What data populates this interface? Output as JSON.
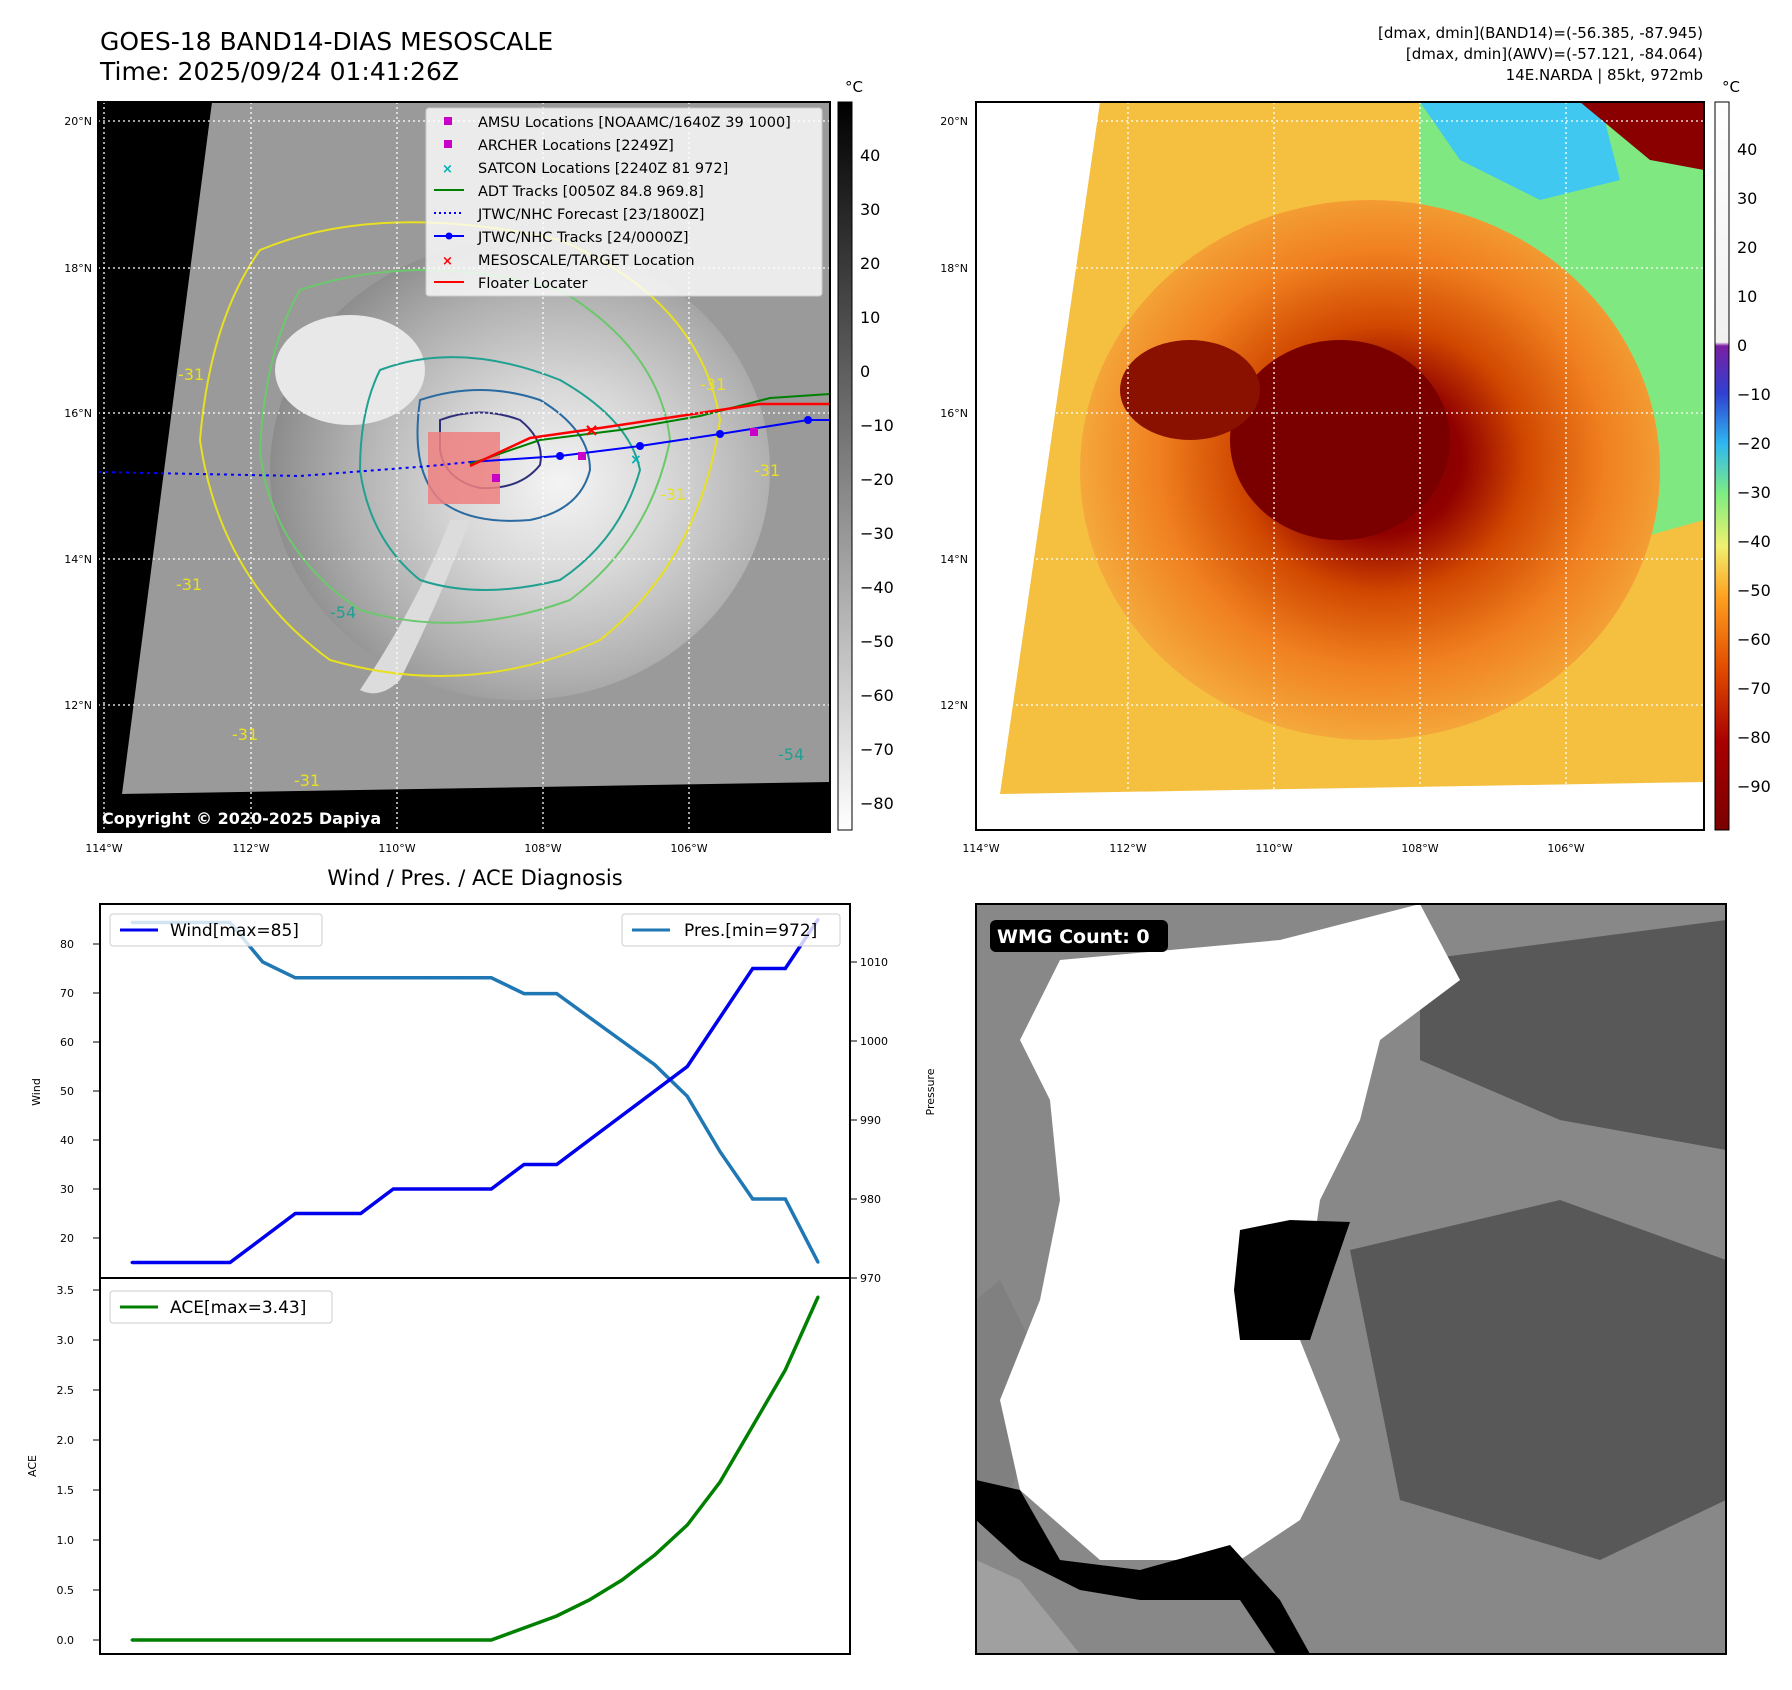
{
  "header": {
    "title_line1": "GOES-18 BAND14-DIAS MESOSCALE",
    "title_line2": "Time: 2025/09/24 01:41:26Z",
    "info_line1": "[dmax, dmin](BAND14)=(-56.385, -87.945)",
    "info_line2": "[dmax, dmin](AWV)=(-57.121, -84.064)",
    "info_line3": "14E.NARDA | 85kt, 972mb"
  },
  "map_left": {
    "copyright": "Copyright © 2020-2025 Dapiya",
    "lat_ticks": [
      "20°N",
      "18°N",
      "16°N",
      "14°N",
      "12°N"
    ],
    "lon_ticks": [
      "114°W",
      "112°W",
      "110°W",
      "108°W",
      "106°W"
    ],
    "contour_labels": [
      "-31",
      "-31",
      "-31",
      "-31",
      "-54",
      "-54",
      "-31",
      "-31",
      "-31"
    ],
    "colorbar": {
      "unit": "°C",
      "ticks": [
        "40",
        "30",
        "20",
        "10",
        "0",
        "−10",
        "−20",
        "−30",
        "−40",
        "−50",
        "−60",
        "−70",
        "−80"
      ]
    },
    "legend": [
      {
        "label": "AMSU Locations [NOAAMC/1640Z 39 1000]",
        "marker": "square",
        "color": "#c800c8"
      },
      {
        "label": "ARCHER Locations [2249Z]",
        "marker": "square",
        "color": "#c800c8"
      },
      {
        "label": "SATCON Locations [2240Z 81 972]",
        "marker": "x",
        "color": "#00c8c8"
      },
      {
        "label": "ADT Tracks [0050Z 84.8 969.8]",
        "marker": "line",
        "color": "#008000"
      },
      {
        "label": "JTWC/NHC Forecast [23/1800Z]",
        "marker": "dotted",
        "color": "#0000ff"
      },
      {
        "label": "JTWC/NHC Tracks [24/0000Z]",
        "marker": "line-dot",
        "color": "#0000ff"
      },
      {
        "label": "MESOSCALE/TARGET Location",
        "marker": "x",
        "color": "#ff0000"
      },
      {
        "label": "Floater Locater",
        "marker": "line",
        "color": "#ff0000"
      }
    ]
  },
  "map_right": {
    "lat_ticks": [
      "20°N",
      "18°N",
      "16°N",
      "14°N",
      "12°N"
    ],
    "lon_ticks": [
      "114°W",
      "112°W",
      "110°W",
      "108°W",
      "106°W"
    ],
    "colorbar": {
      "unit": "°C",
      "ticks": [
        "40",
        "30",
        "20",
        "10",
        "0",
        "−10",
        "−20",
        "−30",
        "−40",
        "−50",
        "−60",
        "−70",
        "−80",
        "−90"
      ]
    }
  },
  "diagnosis": {
    "title": "Wind / Pres. / ACE Diagnosis",
    "wind_ylabel": "Wind",
    "pres_ylabel": "Pressure",
    "ace_ylabel": "ACE",
    "wind_yticks": [
      "20",
      "30",
      "40",
      "50",
      "60",
      "70",
      "80"
    ],
    "pres_yticks": [
      "970",
      "980",
      "990",
      "1000",
      "1010"
    ],
    "ace_yticks": [
      "0.0",
      "0.5",
      "1.0",
      "1.5",
      "2.0",
      "2.5",
      "3.0",
      "3.5"
    ]
  },
  "wmg": {
    "badge": "WMG Count: 0"
  },
  "chart_data": [
    {
      "type": "line",
      "title": "Wind / Pres. / ACE Diagnosis",
      "ylabel": "Wind",
      "ylim": [
        12,
        88
      ],
      "ylabel_right": "Pressure",
      "ylim_right": [
        970,
        1015
      ],
      "x": [
        0,
        1,
        2,
        3,
        4,
        5,
        6,
        7,
        8,
        9,
        10,
        11,
        12,
        13,
        14,
        15,
        16,
        17,
        18,
        19,
        20,
        21
      ],
      "series": [
        {
          "name": "Wind[max=85]",
          "axis": "left",
          "color": "#0000ee",
          "values": [
            15,
            15,
            15,
            15,
            20,
            25,
            25,
            25,
            30,
            30,
            30,
            30,
            35,
            35,
            40,
            45,
            50,
            55,
            65,
            75,
            75,
            85
          ]
        },
        {
          "name": "Pres.[min=972]",
          "axis": "right",
          "color": "#1f77b4",
          "values": [
            1015,
            1015,
            1015,
            1015,
            1010,
            1008,
            1008,
            1008,
            1008,
            1008,
            1008,
            1008,
            1006,
            1006,
            1003,
            1000,
            997,
            993,
            986,
            980,
            980,
            972
          ]
        }
      ]
    },
    {
      "type": "line",
      "ylabel": "ACE",
      "ylim": [
        -0.1,
        3.5
      ],
      "x": [
        0,
        1,
        2,
        3,
        4,
        5,
        6,
        7,
        8,
        9,
        10,
        11,
        12,
        13,
        14,
        15,
        16,
        17,
        18,
        19,
        20,
        21
      ],
      "series": [
        {
          "name": "ACE[max=3.43]",
          "color": "#008000",
          "values": [
            0,
            0,
            0,
            0,
            0,
            0,
            0,
            0,
            0,
            0,
            0,
            0,
            0.12,
            0.24,
            0.4,
            0.6,
            0.85,
            1.15,
            1.58,
            2.14,
            2.7,
            3.43
          ]
        }
      ]
    }
  ]
}
